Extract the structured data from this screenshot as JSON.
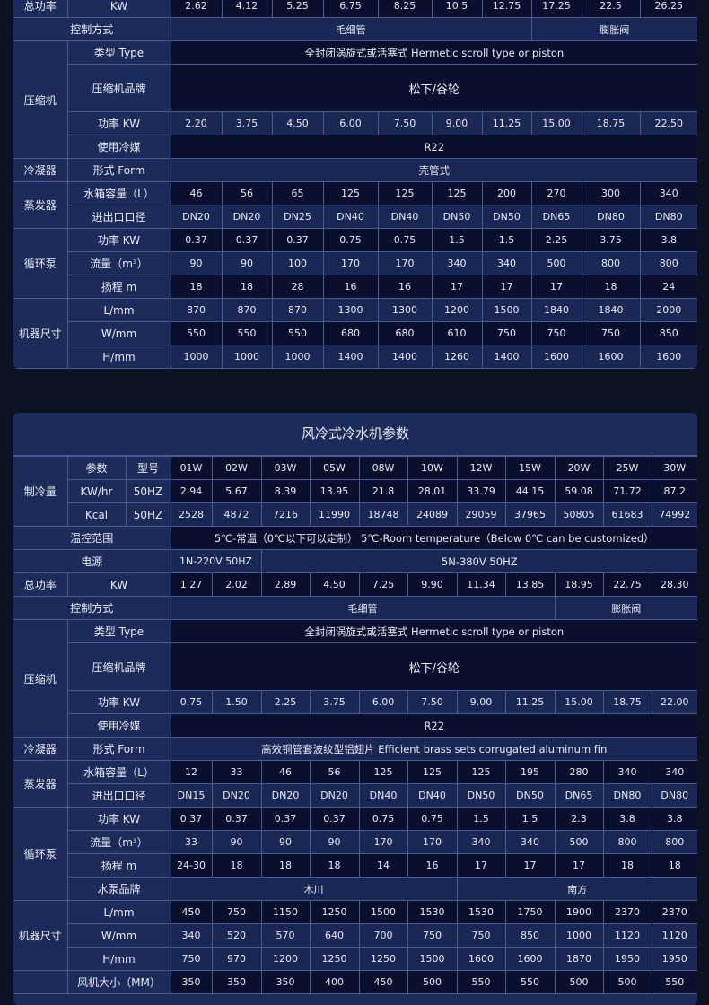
{
  "tables": [
    {
      "title": "",
      "rows": [
        {
          "group": "总功率",
          "label": "KW",
          "shade": "dark",
          "values": [
            "2.62",
            "4.12",
            "5.25",
            "6.75",
            "8.25",
            "10.5",
            "12.75",
            "17.25",
            "22.5",
            "26.25"
          ]
        },
        {
          "label": "控制方式",
          "full": true,
          "shade": "light",
          "spans": [
            {
              "text": "毛细管",
              "span": 7
            },
            {
              "text": "膨胀阀",
              "span": 3
            }
          ]
        },
        {
          "group": "压缩机",
          "rowspan": 4,
          "label": "类型 Type",
          "shade": "dark",
          "spans": [
            {
              "text": "全封闭涡旋式或活塞式 Hermetic scroll type or piston",
              "span": 10
            }
          ]
        },
        {
          "label": "压缩机品牌",
          "shade": "dark",
          "tall": true,
          "spans": [
            {
              "text": "松下/谷轮",
              "span": 10
            }
          ]
        },
        {
          "label": "功率 KW",
          "shade": "light",
          "values": [
            "2.20",
            "3.75",
            "4.50",
            "6.00",
            "7.50",
            "9.00",
            "11.25",
            "15.00",
            "18.75",
            "22.50"
          ]
        },
        {
          "label": "使用冷媒",
          "shade": "dark",
          "spans": [
            {
              "text": "R22",
              "span": 10
            }
          ]
        },
        {
          "group": "冷凝器",
          "label": "形式 Form",
          "shade": "light",
          "spans": [
            {
              "text": "壳管式",
              "span": 10
            }
          ]
        },
        {
          "group": "蒸发器",
          "rowspan": 2,
          "label": "水箱容量（L）",
          "shade": "dark",
          "values": [
            "46",
            "56",
            "65",
            "125",
            "125",
            "125",
            "200",
            "270",
            "300",
            "340"
          ]
        },
        {
          "label": "进出口口径",
          "shade": "light",
          "values": [
            "DN20",
            "DN20",
            "DN25",
            "DN40",
            "DN40",
            "DN50",
            "DN50",
            "DN65",
            "DN80",
            "DN80"
          ]
        },
        {
          "group": "循环泵",
          "rowspan": 3,
          "label": "功率 KW",
          "shade": "dark",
          "values": [
            "0.37",
            "0.37",
            "0.37",
            "0.75",
            "0.75",
            "1.5",
            "1.5",
            "2.25",
            "3.75",
            "3.8"
          ]
        },
        {
          "label": "流量（m³）",
          "shade": "light",
          "values": [
            "90",
            "90",
            "100",
            "170",
            "170",
            "340",
            "340",
            "500",
            "800",
            "800"
          ]
        },
        {
          "label": "扬程 m",
          "shade": "dark",
          "values": [
            "18",
            "18",
            "28",
            "16",
            "16",
            "17",
            "17",
            "17",
            "18",
            "24"
          ]
        },
        {
          "group": "机器尺寸",
          "rowspan": 3,
          "label": "L/mm",
          "shade": "light",
          "values": [
            "870",
            "870",
            "870",
            "1300",
            "1300",
            "1200",
            "1500",
            "1840",
            "1840",
            "2000"
          ]
        },
        {
          "label": "W/mm",
          "shade": "dark",
          "values": [
            "550",
            "550",
            "550",
            "680",
            "680",
            "610",
            "750",
            "750",
            "750",
            "850"
          ]
        },
        {
          "label": "H/mm",
          "shade": "light",
          "values": [
            "1000",
            "1000",
            "1000",
            "1400",
            "1400",
            "1260",
            "1400",
            "1600",
            "1600",
            "1600"
          ]
        }
      ]
    },
    {
      "title": "风冷式冷水机参数",
      "rows": [
        {
          "group": "制冷量",
          "rowspan": 3,
          "label": "参数",
          "label2": "型号",
          "shade": "dark",
          "values": [
            "01W",
            "02W",
            "03W",
            "05W",
            "08W",
            "10W",
            "12W",
            "15W",
            "20W",
            "25W",
            "30W"
          ]
        },
        {
          "label": "KW/hr",
          "label2": "50HZ",
          "shade": "dark",
          "values": [
            "2.94",
            "5.67",
            "8.39",
            "13.95",
            "21.8",
            "28.01",
            "33.79",
            "44.15",
            "59.08",
            "71.72",
            "87.2"
          ]
        },
        {
          "label": "Kcal",
          "label2": "50HZ",
          "shade": "light",
          "values": [
            "2528",
            "4872",
            "7216",
            "11990",
            "18748",
            "24089",
            "29059",
            "37965",
            "50805",
            "61683",
            "74992"
          ]
        },
        {
          "label": "温控范围",
          "full": true,
          "shade": "dark",
          "spans": [
            {
              "text": "5℃-常温（0℃以下可以定制） 5℃-Room temperature（Below 0℃ can be customized）",
              "span": 11
            }
          ]
        },
        {
          "label": "电源",
          "full": true,
          "shade": "light",
          "spans": [
            {
              "text": "1N-220V 50HZ",
              "span": 2
            },
            {
              "text": "5N-380V 50HZ",
              "span": 9
            }
          ]
        },
        {
          "group": "总功率",
          "label": "KW",
          "shade": "dark",
          "values": [
            "1.27",
            "2.02",
            "2.89",
            "4.50",
            "7.25",
            "9.90",
            "11.34",
            "13.85",
            "18.95",
            "22.75",
            "28.30"
          ]
        },
        {
          "label": "控制方式",
          "full": true,
          "shade": "light",
          "spans": [
            {
              "text": "毛细管",
              "span": 8
            },
            {
              "text": "膨胀阀",
              "span": 3
            }
          ]
        },
        {
          "group": "压缩机",
          "rowspan": 4,
          "label": "类型 Type",
          "shade": "dark",
          "spans": [
            {
              "text": "全封闭涡旋式或活塞式 Hermetic scroll type or piston",
              "span": 11
            }
          ]
        },
        {
          "label": "压缩机品牌",
          "shade": "dark",
          "tall": true,
          "spans": [
            {
              "text": "松下/谷轮",
              "span": 11
            }
          ]
        },
        {
          "label": "功率 KW",
          "shade": "light",
          "values": [
            "0.75",
            "1.50",
            "2.25",
            "3.75",
            "6.00",
            "7.50",
            "9.00",
            "11.25",
            "15.00",
            "18.75",
            "22.00"
          ]
        },
        {
          "label": "使用冷媒",
          "shade": "dark",
          "spans": [
            {
              "text": "R22",
              "span": 11
            }
          ]
        },
        {
          "group": "冷凝器",
          "label": "形式 Form",
          "shade": "light",
          "spans": [
            {
              "text": "高效铜管套波纹型铝翅片 Efficient brass sets corrugated aluminum fin",
              "span": 11
            }
          ]
        },
        {
          "group": "蒸发器",
          "rowspan": 2,
          "label": "水箱容量（L）",
          "shade": "dark",
          "values": [
            "12",
            "33",
            "46",
            "56",
            "125",
            "125",
            "125",
            "195",
            "280",
            "340",
            "340"
          ]
        },
        {
          "label": "进出口口径",
          "shade": "light",
          "values": [
            "DN15",
            "DN20",
            "DN20",
            "DN20",
            "DN40",
            "DN40",
            "DN50",
            "DN50",
            "DN65",
            "DN80",
            "DN80"
          ]
        },
        {
          "group": "循环泵",
          "rowspan": 4,
          "label": "功率 KW",
          "shade": "dark",
          "values": [
            "0.37",
            "0.37",
            "0.37",
            "0.37",
            "0.75",
            "0.75",
            "1.5",
            "1.5",
            "2.3",
            "3.8",
            "3.8"
          ]
        },
        {
          "label": "流量（m³）",
          "shade": "light",
          "values": [
            "33",
            "90",
            "90",
            "90",
            "170",
            "170",
            "340",
            "340",
            "500",
            "800",
            "800"
          ]
        },
        {
          "label": "扬程 m",
          "shade": "dark",
          "values": [
            "24-30",
            "18",
            "18",
            "18",
            "14",
            "16",
            "17",
            "17",
            "17",
            "18",
            "18"
          ]
        },
        {
          "label": "水泵品牌",
          "shade": "light",
          "spans": [
            {
              "text": "木川",
              "span": 6
            },
            {
              "text": "南方",
              "span": 5
            }
          ]
        },
        {
          "group": "机器尺寸",
          "rowspan": 3,
          "label": "L/mm",
          "shade": "dark",
          "values": [
            "450",
            "750",
            "1150",
            "1250",
            "1500",
            "1530",
            "1530",
            "1750",
            "1900",
            "2370",
            "2370"
          ]
        },
        {
          "label": "W/mm",
          "shade": "light",
          "values": [
            "340",
            "520",
            "570",
            "640",
            "700",
            "750",
            "750",
            "850",
            "1000",
            "1120",
            "1120"
          ]
        },
        {
          "label": "H/mm",
          "shade": "light",
          "values": [
            "750",
            "970",
            "1200",
            "1250",
            "1250",
            "1500",
            "1600",
            "1600",
            "1870",
            "1950",
            "1950"
          ]
        },
        {
          "group": "",
          "label": "风机大小（MM）",
          "shade": "dark",
          "values": [
            "350",
            "350",
            "350",
            "400",
            "450",
            "500",
            "550",
            "550",
            "500",
            "500",
            "550"
          ]
        }
      ]
    }
  ],
  "colors": {
    "page_bg": "#0c1222",
    "label_bg": "#1d2b5a",
    "dark_cell": "#0a0f2e",
    "border": "#4a5b8f"
  }
}
